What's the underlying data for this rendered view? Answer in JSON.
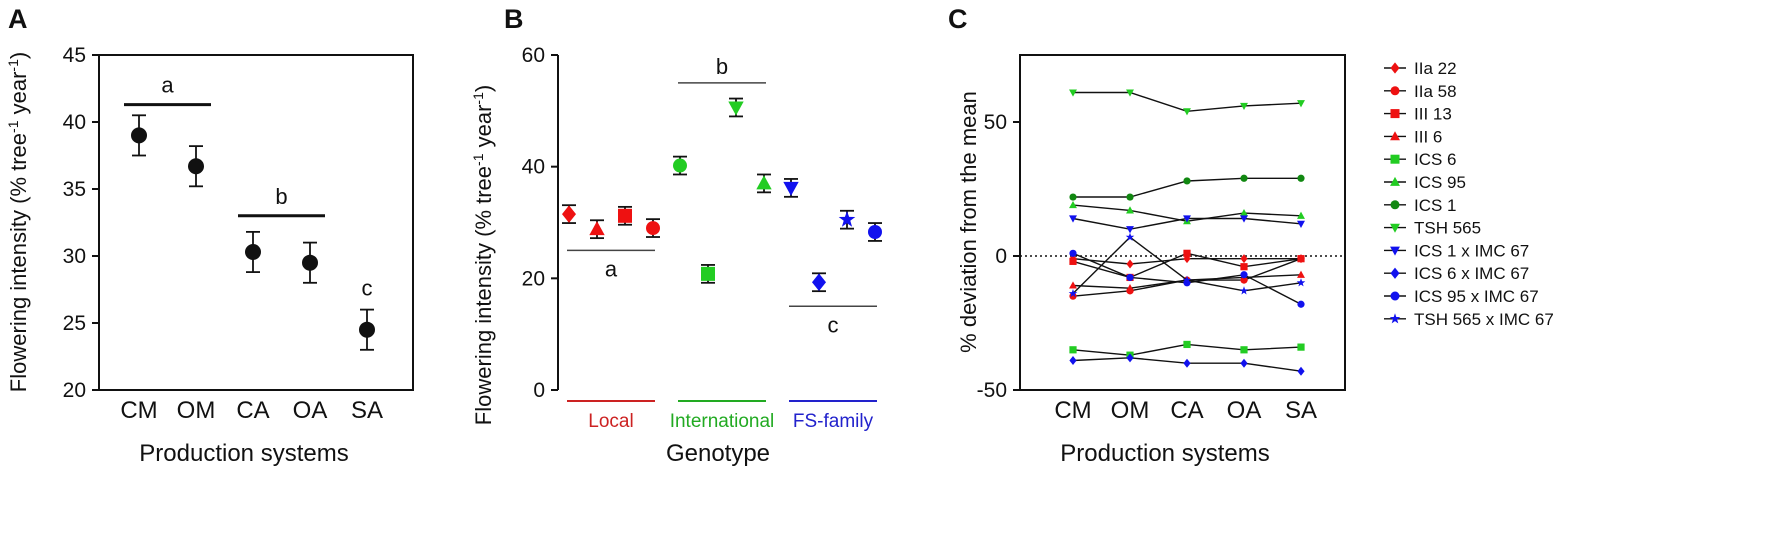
{
  "chart_data": [
    {
      "panel": "A",
      "type": "scatter",
      "categories": [
        "CM",
        "OM",
        "CA",
        "OA",
        "SA"
      ],
      "values": [
        39.0,
        36.7,
        30.3,
        29.5,
        24.5
      ],
      "errors": [
        1.5,
        1.5,
        1.5,
        1.5,
        1.5
      ],
      "ylabel": "Flowering intensity (% tree",
      "ylabel_exp": "-1",
      "ylabel_mid": " year",
      "ylabel_end": ")",
      "xlabel": "Production systems",
      "ylim": [
        20,
        45
      ],
      "yticks": [
        "20",
        "25",
        "30",
        "35",
        "40",
        "45"
      ],
      "significance": [
        {
          "label": "a",
          "from": 0,
          "to": 1,
          "y": 41.3
        },
        {
          "label": "b",
          "from": 2,
          "to": 3,
          "y": 33.0
        },
        {
          "label": "c",
          "from": 4,
          "to": 4,
          "y": null
        }
      ]
    },
    {
      "panel": "B",
      "type": "scatter",
      "groups": [
        "Local",
        "International",
        "FS-family"
      ],
      "group_colors": [
        "#cc2222",
        "#22aa22",
        "#2222cc"
      ],
      "points": [
        {
          "genotype": "IIa 22",
          "group": 0,
          "marker": "diamond",
          "color": "#ee1111",
          "value": 31.5,
          "error": 1.6
        },
        {
          "genotype": "III 6",
          "group": 0,
          "marker": "triangle",
          "color": "#ee1111",
          "value": 28.8,
          "error": 1.6
        },
        {
          "genotype": "III 13",
          "group": 0,
          "marker": "square",
          "color": "#ee1111",
          "value": 31.2,
          "error": 1.6
        },
        {
          "genotype": "IIa 58",
          "group": 0,
          "marker": "circle",
          "color": "#ee1111",
          "value": 29.0,
          "error": 1.6
        },
        {
          "genotype": "ICS 1",
          "group": 1,
          "marker": "circle",
          "color": "#22cc22",
          "value": 40.2,
          "error": 1.6
        },
        {
          "genotype": "ICS 6",
          "group": 1,
          "marker": "square",
          "color": "#22cc22",
          "value": 20.8,
          "error": 1.6
        },
        {
          "genotype": "TSH 565",
          "group": 1,
          "marker": "triangle-down",
          "color": "#22cc22",
          "value": 50.6,
          "error": 1.6
        },
        {
          "genotype": "ICS 95",
          "group": 1,
          "marker": "triangle",
          "color": "#22cc22",
          "value": 37.0,
          "error": 1.6
        },
        {
          "genotype": "ICS 1 x IMC 67",
          "group": 2,
          "marker": "triangle-down",
          "color": "#1111ee",
          "value": 36.2,
          "error": 1.6
        },
        {
          "genotype": "ICS 6 x IMC 67",
          "group": 2,
          "marker": "diamond",
          "color": "#1111ee",
          "value": 19.3,
          "error": 1.6
        },
        {
          "genotype": "TSH 565 x IMC 67",
          "group": 2,
          "marker": "star",
          "color": "#1111ee",
          "value": 30.5,
          "error": 1.6
        },
        {
          "genotype": "ICS 95 x IMC 67",
          "group": 2,
          "marker": "circle",
          "color": "#1111ee",
          "value": 28.3,
          "error": 1.6
        }
      ],
      "ylabel": "Flowering intensity (% tree",
      "ylabel_exp": "-1",
      "ylabel_mid": " year",
      "ylabel_end": ")",
      "xlabel": "Genotype",
      "ylim": [
        0,
        60
      ],
      "yticks": [
        "0",
        "20",
        "40",
        "60"
      ],
      "significance": [
        {
          "label": "a",
          "from": 0,
          "to": 3,
          "y": 25.0,
          "label_pos": "below"
        },
        {
          "label": "b",
          "from": 4,
          "to": 7,
          "y": 55.0,
          "label_pos": "above"
        },
        {
          "label": "c",
          "from": 8,
          "to": 11,
          "y": 15.0,
          "label_pos": "below"
        }
      ]
    },
    {
      "panel": "C",
      "type": "line",
      "categories": [
        "CM",
        "OM",
        "CA",
        "OA",
        "SA"
      ],
      "ylabel": "% deviation from the mean",
      "xlabel": "Production systems",
      "ylim": [
        -50,
        75
      ],
      "yticks": [
        "-50",
        "0",
        "50"
      ],
      "ytick_values": [
        -50,
        0,
        50
      ],
      "zero_line": "dotted",
      "series": [
        {
          "name": "IIa 22",
          "marker": "diamond",
          "color": "#ee1111",
          "values": [
            -1,
            -3,
            -1,
            -1,
            -1
          ]
        },
        {
          "name": "IIa 58",
          "marker": "circle",
          "color": "#ee1111",
          "values": [
            -15,
            -13,
            -9,
            -9,
            -1
          ]
        },
        {
          "name": "III 13",
          "marker": "square",
          "color": "#ee1111",
          "values": [
            -2,
            -8,
            1,
            -4,
            -1
          ]
        },
        {
          "name": "III 6",
          "marker": "triangle",
          "color": "#ee1111",
          "values": [
            -11,
            -12,
            -9,
            -8,
            -7
          ]
        },
        {
          "name": "ICS 6",
          "marker": "square",
          "color": "#22cc22",
          "values": [
            -35,
            -37,
            -33,
            -35,
            -34
          ]
        },
        {
          "name": "ICS 95",
          "marker": "triangle",
          "color": "#22cc22",
          "values": [
            19,
            17,
            13,
            16,
            15
          ]
        },
        {
          "name": "ICS 1",
          "marker": "circle",
          "color": "#118811",
          "values": [
            22,
            22,
            28,
            29,
            29
          ]
        },
        {
          "name": "TSH 565",
          "marker": "triangle-down",
          "color": "#22cc22",
          "values": [
            61,
            61,
            54,
            56,
            57
          ]
        },
        {
          "name": "ICS 1 x IMC 67",
          "marker": "triangle-down",
          "color": "#1111ee",
          "values": [
            14,
            10,
            14,
            14,
            12
          ]
        },
        {
          "name": "ICS 6 x IMC 67",
          "marker": "diamond",
          "color": "#1111ee",
          "values": [
            -39,
            -38,
            -40,
            -40,
            -43
          ]
        },
        {
          "name": "ICS 95 x IMC 67",
          "marker": "circle",
          "color": "#1111ee",
          "values": [
            1,
            -8,
            -10,
            -7,
            -18
          ]
        },
        {
          "name": "TSH 565 x IMC 67",
          "marker": "star",
          "color": "#1111ee",
          "values": [
            -14,
            7,
            -9,
            -13,
            -10
          ]
        }
      ]
    }
  ]
}
